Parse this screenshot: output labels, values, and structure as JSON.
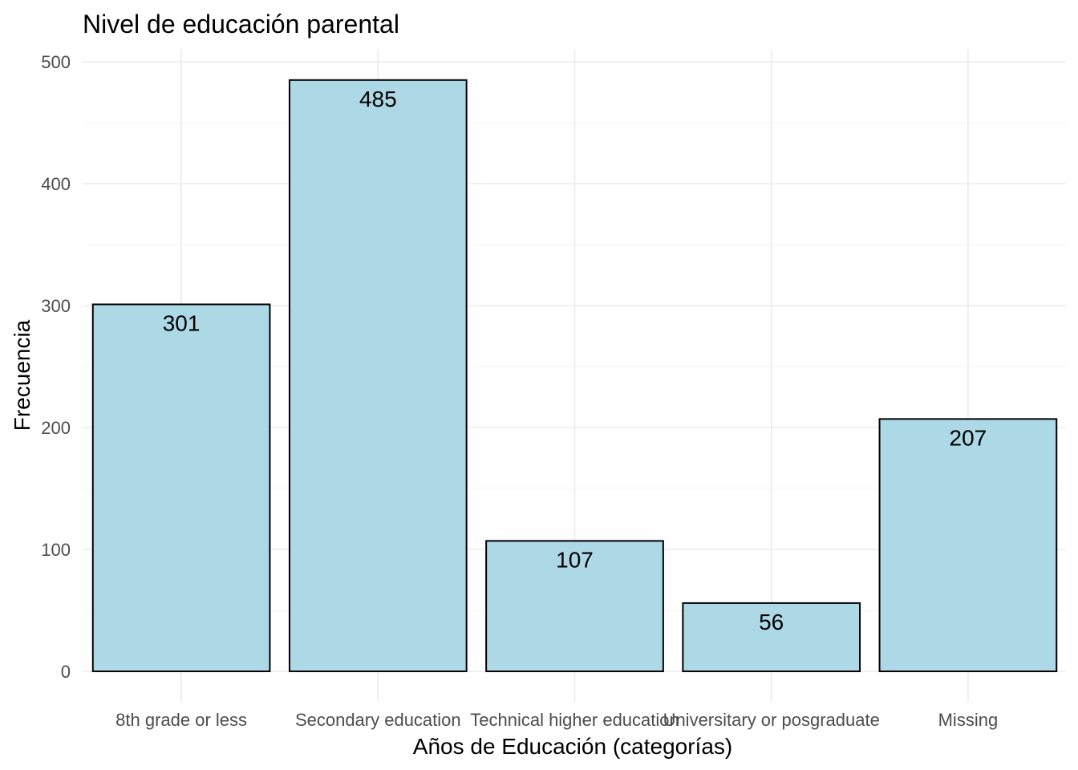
{
  "chart_data": {
    "type": "bar",
    "title": "Nivel de educación parental",
    "xlabel": "Años de Educación (categorías)",
    "ylabel": "Frecuencia",
    "categories": [
      "8th grade or less",
      "Secondary education",
      "Technical higher education",
      "Universitary or posgraduate",
      "Missing"
    ],
    "values": [
      301,
      485,
      107,
      56,
      207
    ],
    "data_labels": [
      "301",
      "485",
      "107",
      "56",
      "207"
    ],
    "y_ticks": [
      0,
      100,
      200,
      300,
      400,
      500
    ],
    "ylim": [
      0,
      500
    ],
    "grid": true,
    "legend": "none",
    "colors": {
      "bar_fill": "#add8e6",
      "bar_stroke": "#000000"
    }
  }
}
